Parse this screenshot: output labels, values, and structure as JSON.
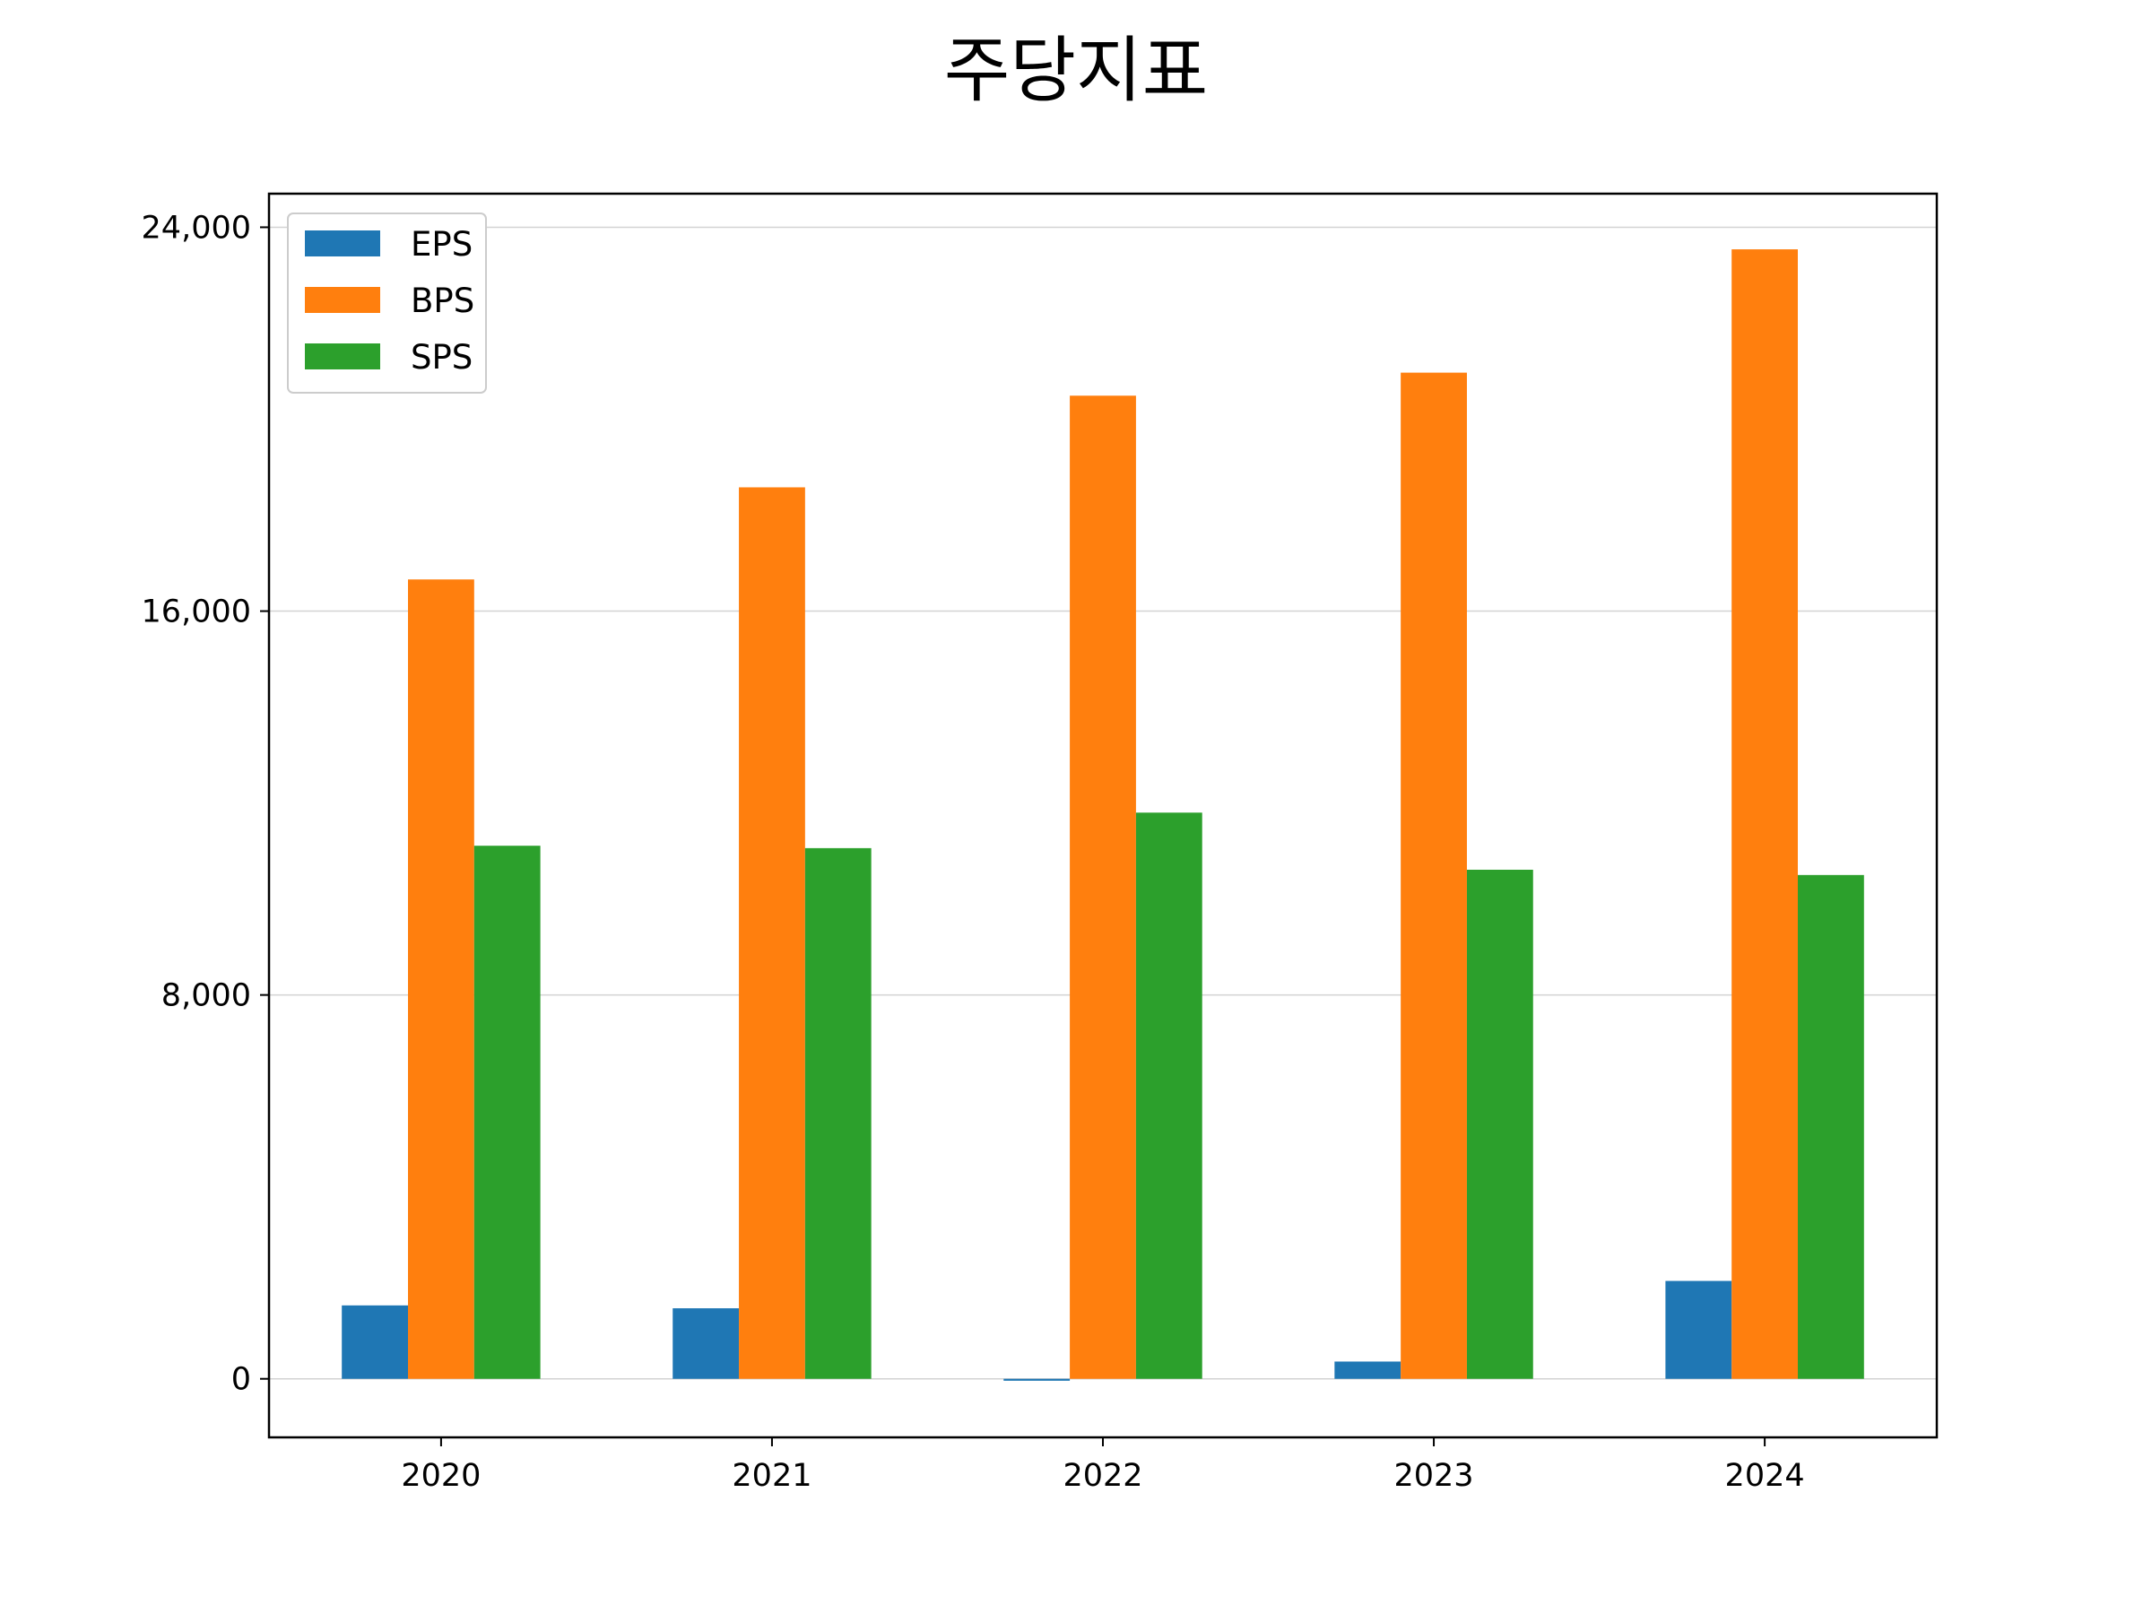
{
  "chart_data": {
    "type": "bar",
    "title": "주당지표",
    "xlabel": "",
    "ylabel": "",
    "categories": [
      "2020",
      "2021",
      "2022",
      "2023",
      "2024"
    ],
    "series": [
      {
        "name": "EPS",
        "color": "#1f77b4",
        "values": [
          1530,
          1470,
          -40,
          360,
          2040
        ]
      },
      {
        "name": "BPS",
        "color": "#ff7f0e",
        "values": [
          16660,
          18580,
          20490,
          20970,
          23540
        ]
      },
      {
        "name": "SPS",
        "color": "#2ca02c",
        "values": [
          11110,
          11060,
          11800,
          10610,
          10500
        ]
      }
    ],
    "ylim": [
      -1220,
      24700
    ],
    "yticks": [
      0,
      8000,
      16000,
      24000
    ],
    "ytick_labels": [
      "0",
      "8,000",
      "16,000",
      "24,000"
    ],
    "grid": "y",
    "legend_position": "upper-left"
  }
}
